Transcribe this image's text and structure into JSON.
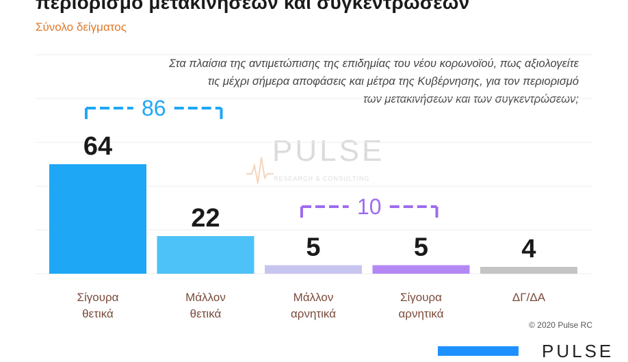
{
  "header": {
    "title": "περιορισμό μετακινήσεων και συγκεντρώσεων",
    "subtitle": "Σύνολο δείγματος"
  },
  "question": {
    "line1": "Στα πλαίσια της αντιμετώπισης της επιδημίας του νέου κορωνοϊού, πως αξιολογείτε",
    "line2": "τις μέχρι σήμερα αποφάσεις και μέτρα της Κυβέρνησης, για τον περιορισμό",
    "line3": "των μετακινήσεων και των συγκεντρώσεων;"
  },
  "watermark": {
    "word": "PULSE",
    "sub": "RESEARCH & CONSULTING"
  },
  "copyright": "© 2020 Pulse RC",
  "footer": {
    "logo_text": "PULSE"
  },
  "chart_data": {
    "type": "bar",
    "categories": [
      [
        "Σίγουρα",
        "θετικά"
      ],
      [
        "Μάλλον",
        "θετικά"
      ],
      [
        "Μάλλον",
        "αρνητικά"
      ],
      [
        "Σίγουρα",
        "αρνητικά"
      ],
      [
        "ΔΓ/ΔΑ"
      ]
    ],
    "values": [
      64,
      22,
      5,
      5,
      4
    ],
    "colors": [
      "#1ea7f5",
      "#4dc2f8",
      "#c8c4f0",
      "#b388f5",
      "#c4c4c4"
    ],
    "ylim": [
      0,
      100
    ],
    "grid": true,
    "brackets": [
      {
        "label": "86",
        "from": 0,
        "to": 1,
        "color": "#1ea7f5"
      },
      {
        "label": "10",
        "from": 2,
        "to": 3,
        "color": "#9c6cf0"
      }
    ]
  }
}
